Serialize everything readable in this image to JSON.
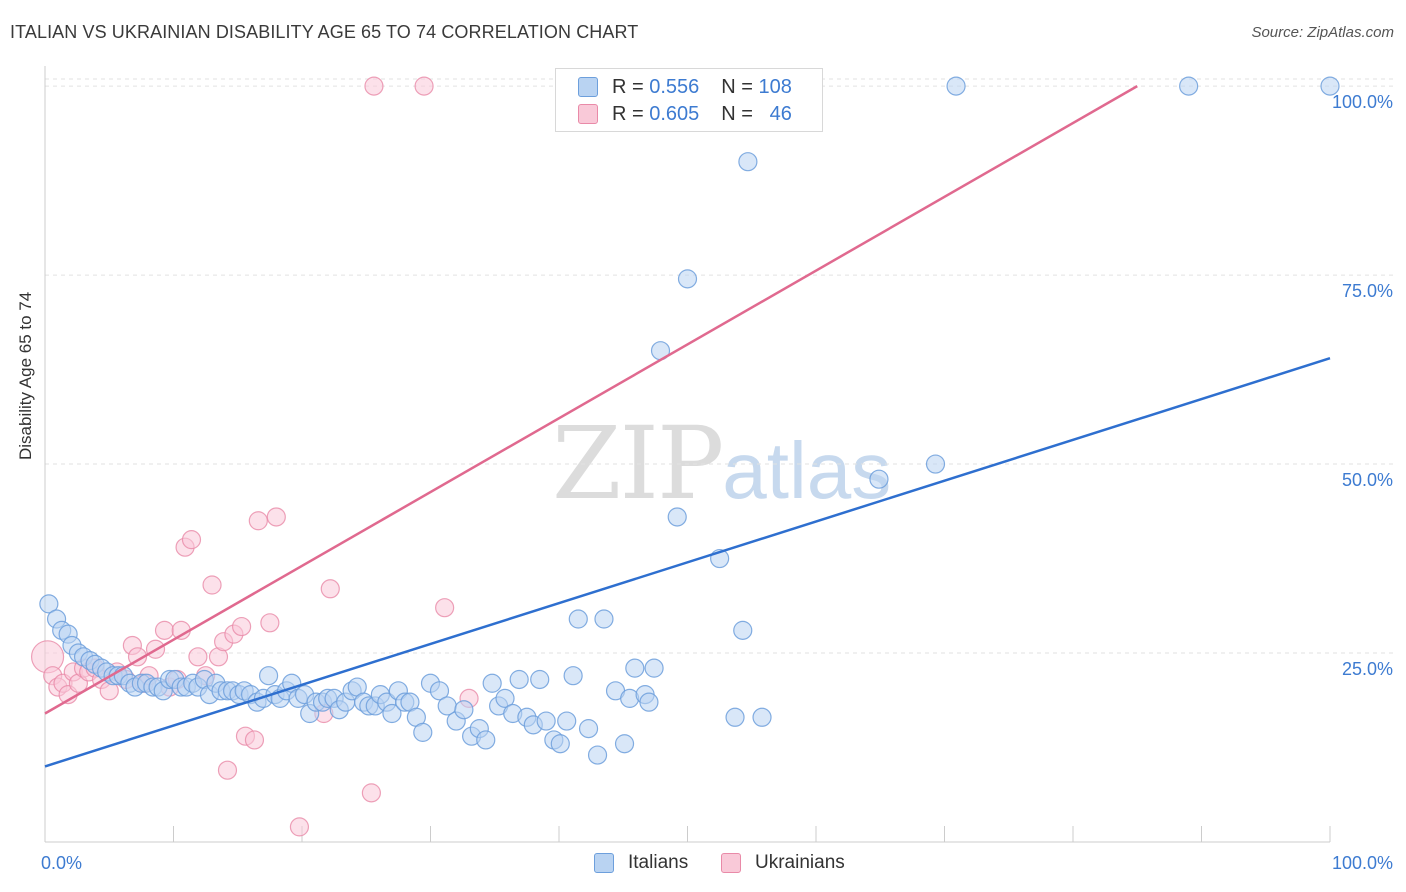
{
  "title": "ITALIAN VS UKRAINIAN DISABILITY AGE 65 TO 74 CORRELATION CHART",
  "source": "Source: ZipAtlas.com",
  "watermark": {
    "zip": "ZIP",
    "atlas": "atlas"
  },
  "legend": {
    "rows": [
      {
        "r_label": "R =",
        "r_value": "0.556",
        "n_label": "N =",
        "n_value": "108"
      },
      {
        "r_label": "R =",
        "r_value": "0.605",
        "n_label": "N =",
        "n_value": "46"
      }
    ]
  },
  "colors": {
    "italians_fill": "#b9d3f2",
    "italians_stroke": "#6d9fdc",
    "italians_line": "#2e6fcf",
    "ukrainians_fill": "#f9c9d8",
    "ukrainians_stroke": "#e98aa8",
    "ukrainians_line": "#e0698f",
    "axis_text": "#3d7bd1",
    "grid": "#e2e2e2"
  },
  "chart_data": {
    "type": "scatter",
    "title": "ITALIAN VS UKRAINIAN DISABILITY AGE 65 TO 74 CORRELATION CHART",
    "xlabel": "",
    "ylabel": "Disability Age 65 to 74",
    "xlim": [
      0,
      100
    ],
    "ylim": [
      0,
      102
    ],
    "x_tick_labels": [
      "0.0%",
      "100.0%"
    ],
    "y_ticks": [
      25,
      50,
      75,
      100
    ],
    "y_tick_labels": [
      "25.0%",
      "50.0%",
      "75.0%",
      "100.0%"
    ],
    "grid": true,
    "legend_position": "bottom",
    "series": [
      {
        "name": "Italians",
        "R": 0.556,
        "N": 108,
        "trend": {
          "x": [
            0,
            100
          ],
          "y": [
            10,
            64
          ]
        },
        "points": [
          [
            0.3,
            31.5
          ],
          [
            0.9,
            29.5
          ],
          [
            1.3,
            28.0
          ],
          [
            1.8,
            27.5
          ],
          [
            2.1,
            26.0
          ],
          [
            2.6,
            25.0
          ],
          [
            3.0,
            24.5
          ],
          [
            3.5,
            24.0
          ],
          [
            3.9,
            23.5
          ],
          [
            4.4,
            23.0
          ],
          [
            4.8,
            22.5
          ],
          [
            5.3,
            22.0
          ],
          [
            5.7,
            22.0
          ],
          [
            6.1,
            22.0
          ],
          [
            6.6,
            21.0
          ],
          [
            7.0,
            20.5
          ],
          [
            7.5,
            21.0
          ],
          [
            7.9,
            21.0
          ],
          [
            8.4,
            20.5
          ],
          [
            8.8,
            20.5
          ],
          [
            9.2,
            20.0
          ],
          [
            9.7,
            21.5
          ],
          [
            10.1,
            21.5
          ],
          [
            10.6,
            20.5
          ],
          [
            11.0,
            20.5
          ],
          [
            11.5,
            21.0
          ],
          [
            11.9,
            20.5
          ],
          [
            12.4,
            21.5
          ],
          [
            12.8,
            19.5
          ],
          [
            13.3,
            21.0
          ],
          [
            13.7,
            20.0
          ],
          [
            14.2,
            20.0
          ],
          [
            14.6,
            20.0
          ],
          [
            15.1,
            19.5
          ],
          [
            15.5,
            20.0
          ],
          [
            16.0,
            19.5
          ],
          [
            16.5,
            18.5
          ],
          [
            17.0,
            19.0
          ],
          [
            17.4,
            22.0
          ],
          [
            17.9,
            19.5
          ],
          [
            18.3,
            19.0
          ],
          [
            18.8,
            20.0
          ],
          [
            19.2,
            21.0
          ],
          [
            19.7,
            19.0
          ],
          [
            20.2,
            19.5
          ],
          [
            20.6,
            17.0
          ],
          [
            21.1,
            18.5
          ],
          [
            21.6,
            18.5
          ],
          [
            22.0,
            19.0
          ],
          [
            22.5,
            19.0
          ],
          [
            22.9,
            17.5
          ],
          [
            23.4,
            18.5
          ],
          [
            23.9,
            20.0
          ],
          [
            24.3,
            20.5
          ],
          [
            24.8,
            18.5
          ],
          [
            25.2,
            18.0
          ],
          [
            25.7,
            18.0
          ],
          [
            26.1,
            19.5
          ],
          [
            26.6,
            18.5
          ],
          [
            27.0,
            17.0
          ],
          [
            27.5,
            20.0
          ],
          [
            28.0,
            18.5
          ],
          [
            28.4,
            18.5
          ],
          [
            28.9,
            16.5
          ],
          [
            29.4,
            14.5
          ],
          [
            30.0,
            21.0
          ],
          [
            30.7,
            20.0
          ],
          [
            31.3,
            18.0
          ],
          [
            32.0,
            16.0
          ],
          [
            32.6,
            17.5
          ],
          [
            33.2,
            14.0
          ],
          [
            33.8,
            15.0
          ],
          [
            34.3,
            13.5
          ],
          [
            34.8,
            21.0
          ],
          [
            35.3,
            18.0
          ],
          [
            35.8,
            19.0
          ],
          [
            36.4,
            17.0
          ],
          [
            36.9,
            21.5
          ],
          [
            37.5,
            16.5
          ],
          [
            38.0,
            15.5
          ],
          [
            38.5,
            21.5
          ],
          [
            39.0,
            16.0
          ],
          [
            39.6,
            13.5
          ],
          [
            40.1,
            13.0
          ],
          [
            40.6,
            16.0
          ],
          [
            41.1,
            22.0
          ],
          [
            41.5,
            29.5
          ],
          [
            42.3,
            15.0
          ],
          [
            43.0,
            11.5
          ],
          [
            43.5,
            29.5
          ],
          [
            44.4,
            20.0
          ],
          [
            45.1,
            13.0
          ],
          [
            45.5,
            19.0
          ],
          [
            45.9,
            23.0
          ],
          [
            46.7,
            19.5
          ],
          [
            47.0,
            18.5
          ],
          [
            47.4,
            23.0
          ],
          [
            47.9,
            65.0
          ],
          [
            49.2,
            43.0
          ],
          [
            50.0,
            74.5
          ],
          [
            52.5,
            37.5
          ],
          [
            53.7,
            16.5
          ],
          [
            54.3,
            28.0
          ],
          [
            54.7,
            90.0
          ],
          [
            55.8,
            16.5
          ],
          [
            64.9,
            48.0
          ],
          [
            69.3,
            50.0
          ],
          [
            70.9,
            100.0
          ],
          [
            89.0,
            100.0
          ],
          [
            100.0,
            100.0
          ]
        ]
      },
      {
        "name": "Ukrainians",
        "R": 0.605,
        "N": 46,
        "trend": {
          "x": [
            0,
            85
          ],
          "y": [
            17,
            100
          ]
        },
        "points": [
          [
            0.2,
            24.5
          ],
          [
            0.6,
            22.0
          ],
          [
            1.0,
            20.5
          ],
          [
            1.4,
            21.0
          ],
          [
            1.8,
            19.5
          ],
          [
            2.2,
            22.5
          ],
          [
            2.6,
            21.0
          ],
          [
            3.0,
            23.0
          ],
          [
            3.4,
            22.5
          ],
          [
            3.9,
            23.0
          ],
          [
            4.4,
            21.5
          ],
          [
            5.0,
            20.0
          ],
          [
            5.6,
            22.5
          ],
          [
            6.3,
            21.5
          ],
          [
            6.8,
            26.0
          ],
          [
            7.2,
            24.5
          ],
          [
            7.7,
            21.0
          ],
          [
            8.1,
            22.0
          ],
          [
            8.6,
            25.5
          ],
          [
            9.3,
            28.0
          ],
          [
            9.7,
            20.5
          ],
          [
            10.3,
            21.5
          ],
          [
            10.6,
            28.0
          ],
          [
            10.9,
            39.0
          ],
          [
            11.4,
            40.0
          ],
          [
            11.9,
            24.5
          ],
          [
            12.5,
            22.0
          ],
          [
            13.0,
            34.0
          ],
          [
            13.5,
            24.5
          ],
          [
            13.9,
            26.5
          ],
          [
            14.2,
            9.5
          ],
          [
            14.7,
            27.5
          ],
          [
            15.3,
            28.5
          ],
          [
            15.6,
            14.0
          ],
          [
            16.3,
            13.5
          ],
          [
            16.6,
            42.5
          ],
          [
            17.5,
            29.0
          ],
          [
            18.0,
            43.0
          ],
          [
            19.8,
            2.0
          ],
          [
            21.7,
            17.0
          ],
          [
            22.2,
            33.5
          ],
          [
            25.4,
            6.5
          ],
          [
            25.6,
            100.0
          ],
          [
            29.5,
            100.0
          ],
          [
            31.1,
            31.0
          ],
          [
            33.0,
            19.0
          ]
        ]
      }
    ]
  },
  "bottom_legend": {
    "italians_label": "Italians",
    "ukrainians_label": "Ukrainians"
  }
}
